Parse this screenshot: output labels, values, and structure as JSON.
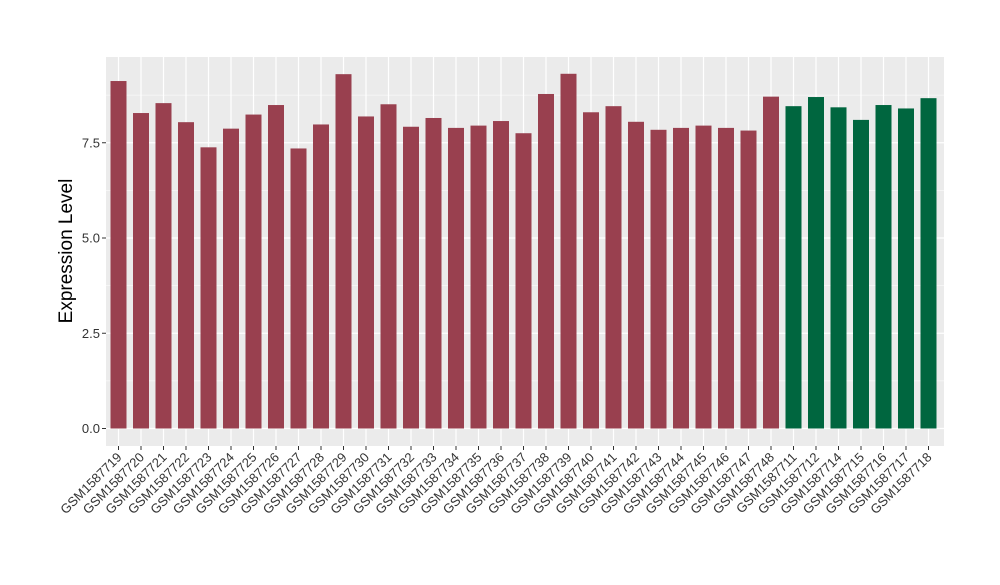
{
  "chart_data": {
    "type": "bar",
    "title": "",
    "xlabel": "",
    "ylabel": "Expression Level",
    "ylim": [
      0,
      9.7
    ],
    "yticks": [
      0.0,
      2.5,
      5.0,
      7.5
    ],
    "ytick_labels": [
      "0.0",
      "2.5",
      "5.0",
      "7.5"
    ],
    "grid": true,
    "legend": "none",
    "colors": {
      "group1": "#99404f",
      "group2": "#00663f",
      "panel_bg": "#ebebeb",
      "grid": "#ffffff"
    },
    "categories": [
      "GSM1587719",
      "GSM1587720",
      "GSM1587721",
      "GSM1587722",
      "GSM1587723",
      "GSM1587724",
      "GSM1587725",
      "GSM1587726",
      "GSM1587727",
      "GSM1587728",
      "GSM1587729",
      "GSM1587730",
      "GSM1587731",
      "GSM1587732",
      "GSM1587733",
      "GSM1587734",
      "GSM1587735",
      "GSM1587736",
      "GSM1587737",
      "GSM1587738",
      "GSM1587739",
      "GSM1587740",
      "GSM1587741",
      "GSM1587742",
      "GSM1587743",
      "GSM1587744",
      "GSM1587745",
      "GSM1587746",
      "GSM1587747",
      "GSM1587748",
      "GSM1587711",
      "GSM1587712",
      "GSM1587714",
      "GSM1587715",
      "GSM1587716",
      "GSM1587717",
      "GSM1587718"
    ],
    "values": [
      9.12,
      8.28,
      8.54,
      8.04,
      7.38,
      7.87,
      8.24,
      8.49,
      7.35,
      7.98,
      9.3,
      8.19,
      8.51,
      7.92,
      8.15,
      7.89,
      7.95,
      8.07,
      7.75,
      8.78,
      9.31,
      8.3,
      8.46,
      8.05,
      7.84,
      7.89,
      7.95,
      7.89,
      7.82,
      8.71,
      8.46,
      8.7,
      8.43,
      8.1,
      8.49,
      8.4,
      8.67
    ],
    "groups": [
      "group1",
      "group1",
      "group1",
      "group1",
      "group1",
      "group1",
      "group1",
      "group1",
      "group1",
      "group1",
      "group1",
      "group1",
      "group1",
      "group1",
      "group1",
      "group1",
      "group1",
      "group1",
      "group1",
      "group1",
      "group1",
      "group1",
      "group1",
      "group1",
      "group1",
      "group1",
      "group1",
      "group1",
      "group1",
      "group1",
      "group2",
      "group2",
      "group2",
      "group2",
      "group2",
      "group2",
      "group2"
    ]
  }
}
